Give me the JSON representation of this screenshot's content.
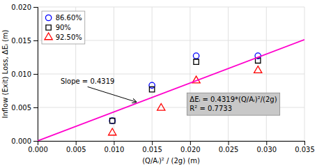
{
  "chart_data": {
    "type": "scatter",
    "x_label": "(Q/Aᵢ)² / (2g) (m)",
    "y_label": "Inflow (Exit) Loss, ΔEᵢ (m)",
    "series": [
      {
        "name": "86.60%",
        "color": "#0000ff",
        "marker": "circle",
        "x": [
          0.0098,
          0.015,
          0.0208,
          0.0289
        ],
        "values": [
          0.003,
          0.0083,
          0.0127,
          0.0127
        ]
      },
      {
        "name": "90%",
        "color": "#000000",
        "marker": "square",
        "x": [
          0.0098,
          0.015,
          0.0208,
          0.0289
        ],
        "values": [
          0.003,
          0.0077,
          0.0118,
          0.012
        ]
      },
      {
        "name": "92.50%",
        "color": "#ff0000",
        "marker": "triangle",
        "x": [
          0.0098,
          0.0162,
          0.0208,
          0.0289
        ],
        "values": [
          0.0012,
          0.0049,
          0.009,
          0.0105
        ]
      },
      {
        "type": "line",
        "color": "#ff00cc",
        "x": [
          0,
          0.035
        ],
        "values": [
          0,
          0.0151165
        ]
      }
    ],
    "xlim": [
      0,
      0.035
    ],
    "ylim": [
      0,
      0.02
    ],
    "xticks": [
      {
        "value": 0,
        "label": "0.000"
      },
      {
        "value": 0.005,
        "label": "0.005"
      },
      {
        "value": 0.01,
        "label": "0.010"
      },
      {
        "value": 0.015,
        "label": "0.015"
      },
      {
        "value": 0.02,
        "label": "0.020"
      },
      {
        "value": 0.025,
        "label": "0.025"
      },
      {
        "value": 0.03,
        "label": "0.030"
      },
      {
        "value": 0.035,
        "label": "0.035"
      }
    ],
    "yticks": [
      {
        "value": 0,
        "label": "0.000"
      },
      {
        "value": 0.005,
        "label": "0.005"
      },
      {
        "value": 0.01,
        "label": "0.010"
      },
      {
        "value": 0.015,
        "label": "0.015"
      },
      {
        "value": 0.02,
        "label": "0.020"
      }
    ],
    "grid": true,
    "legend": "upper left",
    "annotations": [
      "Slope = 0.4319",
      "ΔEᵢ = 0.4319*(Q/Aᵢ)²/(2g)",
      "R² = 0.7733"
    ]
  }
}
